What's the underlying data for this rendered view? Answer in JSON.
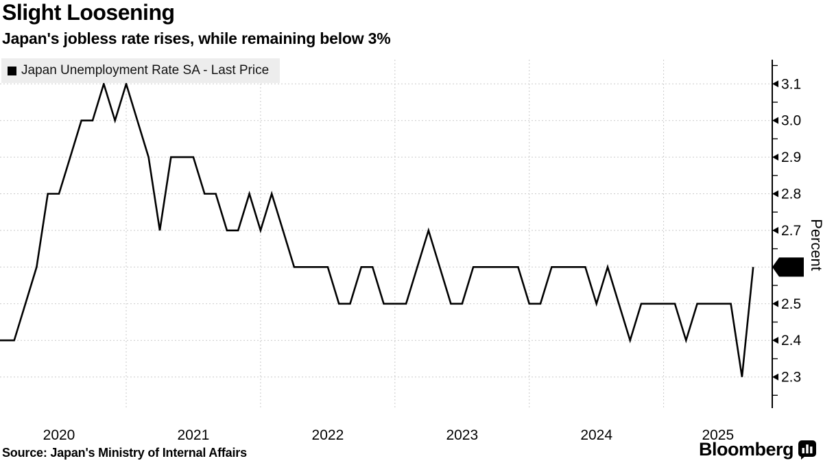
{
  "header": {
    "title": "Slight Loosening",
    "subtitle": "Japan's jobless rate rises, while remaining below 3%"
  },
  "legend": {
    "label": "Japan Unemployment Rate SA - Last Price"
  },
  "footer": {
    "source": "Source: Japan's Ministry of Internal Affairs",
    "brand": "Bloomberg"
  },
  "chart_data": {
    "type": "line",
    "title": "Slight Loosening",
    "series_name": "Japan Unemployment Rate SA - Last Price",
    "xlabel": "",
    "ylabel": "Percent",
    "grid": true,
    "legend_position": "top-left",
    "line_color": "#000000",
    "x": [
      "Jan 2020",
      "Feb 2020",
      "Mar 2020",
      "Apr 2020",
      "May 2020",
      "Jun 2020",
      "Jul 2020",
      "Aug 2020",
      "Sep 2020",
      "Oct 2020",
      "Nov 2020",
      "Dec 2020",
      "Jan 2021",
      "Feb 2021",
      "Mar 2021",
      "Apr 2021",
      "May 2021",
      "Jun 2021",
      "Jul 2021",
      "Aug 2021",
      "Sep 2021",
      "Oct 2021",
      "Nov 2021",
      "Dec 2021",
      "Jan 2022",
      "Feb 2022",
      "Mar 2022",
      "Apr 2022",
      "May 2022",
      "Jun 2022",
      "Jul 2022",
      "Aug 2022",
      "Sep 2022",
      "Oct 2022",
      "Nov 2022",
      "Dec 2022",
      "Jan 2023",
      "Feb 2023",
      "Mar 2023",
      "Apr 2023",
      "May 2023",
      "Jun 2023",
      "Jul 2023",
      "Aug 2023",
      "Sep 2023",
      "Oct 2023",
      "Nov 2023",
      "Dec 2023",
      "Jan 2024",
      "Feb 2024",
      "Mar 2024",
      "Apr 2024",
      "May 2024",
      "Jun 2024",
      "Jul 2024",
      "Aug 2024",
      "Sep 2024",
      "Oct 2024",
      "Nov 2024",
      "Dec 2024",
      "Jan 2025",
      "Feb 2025",
      "Mar 2025",
      "Apr 2025",
      "May 2025",
      "Jun 2025",
      "Jul 2025",
      "Aug 2025"
    ],
    "values": [
      2.4,
      2.4,
      2.5,
      2.6,
      2.8,
      2.8,
      2.9,
      3.0,
      3.0,
      3.1,
      3.0,
      3.1,
      3.0,
      2.9,
      2.7,
      2.9,
      2.9,
      2.9,
      2.8,
      2.8,
      2.7,
      2.7,
      2.8,
      2.7,
      2.8,
      2.7,
      2.6,
      2.6,
      2.6,
      2.6,
      2.5,
      2.5,
      2.6,
      2.6,
      2.5,
      2.5,
      2.5,
      2.6,
      2.7,
      2.6,
      2.5,
      2.5,
      2.6,
      2.6,
      2.6,
      2.6,
      2.6,
      2.5,
      2.5,
      2.6,
      2.6,
      2.6,
      2.6,
      2.5,
      2.6,
      2.5,
      2.4,
      2.5,
      2.5,
      2.5,
      2.5,
      2.4,
      2.5,
      2.5,
      2.5,
      2.5,
      2.3,
      2.6
    ],
    "x_tick_labels": [
      "2020",
      "2021",
      "2022",
      "2023",
      "2024",
      "2025"
    ],
    "y_ticks": [
      2.3,
      2.4,
      2.5,
      2.6,
      2.7,
      2.8,
      2.9,
      3.0,
      3.1
    ],
    "ylim": [
      2.215,
      3.166
    ],
    "last_price": 2.6,
    "last_price_label": "2.6"
  }
}
